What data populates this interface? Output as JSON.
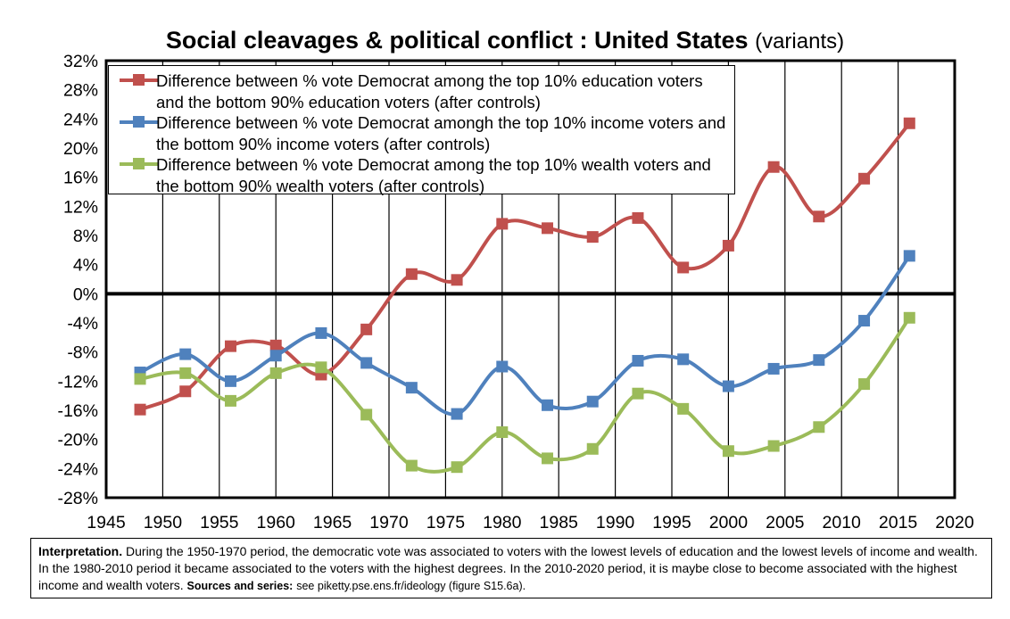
{
  "chart_data": {
    "type": "line",
    "title": "Social cleavages & political conflict : United States",
    "subtitle": "(variants)",
    "xlim": [
      1945,
      2020
    ],
    "ylim": [
      -28,
      32
    ],
    "x_ticks": [
      1945,
      1950,
      1955,
      1960,
      1965,
      1970,
      1975,
      1980,
      1985,
      1990,
      1995,
      2000,
      2005,
      2010,
      2015,
      2020
    ],
    "y_ticks": [
      "32%",
      "28%",
      "24%",
      "20%",
      "16%",
      "12%",
      "8%",
      "4%",
      "0%",
      "-4%",
      "-8%",
      "-12%",
      "-16%",
      "-20%",
      "-24%",
      "-28%"
    ],
    "y_tick_values": [
      32,
      28,
      24,
      20,
      16,
      12,
      8,
      4,
      0,
      -4,
      -8,
      -12,
      -16,
      -20,
      -24,
      -28
    ],
    "grid": "vertical",
    "legend_position": "top-left",
    "x": [
      1948,
      1952,
      1956,
      1960,
      1964,
      1968,
      1972,
      1976,
      1980,
      1984,
      1988,
      1992,
      1996,
      2000,
      2004,
      2008,
      2012,
      2016
    ],
    "series": [
      {
        "name": "Difference between % vote Democrat among the top 10% education voters and the bottom 90% education voters (after controls)",
        "color": "#c0504d",
        "values": [
          -15.9,
          -13.4,
          -7.2,
          -7.1,
          -11.1,
          -4.9,
          2.7,
          1.9,
          9.6,
          9.0,
          7.8,
          10.4,
          3.6,
          6.6,
          17.4,
          10.6,
          15.8,
          23.4
        ]
      },
      {
        "name": "Difference between % vote Democrat amongh the top 10% income voters and the bottom 90% income voters (after controls)",
        "color": "#4f81bd",
        "values": [
          -10.8,
          -8.3,
          -12.0,
          -8.5,
          -5.4,
          -9.5,
          -12.9,
          -16.5,
          -10.0,
          -15.3,
          -14.8,
          -9.2,
          -9.0,
          -12.7,
          -10.3,
          -9.1,
          -3.7,
          5.2
        ]
      },
      {
        "name": "Difference between % vote Democrat among the top 10% wealth voters and the bottom 90% wealth voters (after controls)",
        "color": "#9bbb59",
        "values": [
          -11.7,
          -10.9,
          -14.7,
          -10.9,
          -10.1,
          -16.6,
          -23.6,
          -23.8,
          -19.0,
          -22.6,
          -21.3,
          -13.7,
          -15.8,
          -21.6,
          -20.9,
          -18.3,
          -12.4,
          -3.3
        ]
      }
    ]
  },
  "interpretation": {
    "label": "Interpretation.",
    "text": "During the 1950-1970 period, the democratic vote was associated to voters with the lowest levels of education and the lowest levels of income and wealth. In the 1980-2010 period it became associated to the voters with the highest degrees. In the 2010-2020 period, it is maybe close to become associated with the highest income and wealth voters.",
    "sources_label": "Sources and series:",
    "sources_text": "see piketty.pse.ens.fr/ideology (figure S15.6a)."
  }
}
